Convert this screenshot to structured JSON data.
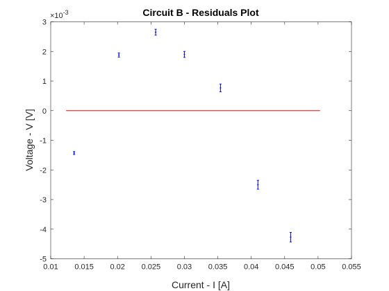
{
  "chart_data": {
    "type": "scatter",
    "title": "Circuit B - Residuals Plot",
    "xlabel": "Current - I [A]",
    "ylabel": "Voltage - V [V]",
    "exponent_label": "×10",
    "exponent_power": "-3",
    "xlim": [
      0.01,
      0.055
    ],
    "ylim": [
      -5,
      3
    ],
    "x_ticks": [
      0.01,
      0.015,
      0.02,
      0.025,
      0.03,
      0.035,
      0.04,
      0.045,
      0.05,
      0.055
    ],
    "x_tick_labels": [
      "0.01",
      "0.015",
      "0.02",
      "0.025",
      "0.03",
      "0.035",
      "0.04",
      "0.045",
      "0.05",
      "0.055"
    ],
    "y_ticks": [
      -5,
      -4,
      -3,
      -2,
      -1,
      0,
      1,
      2,
      3
    ],
    "y_tick_labels": [
      "-5",
      "-4",
      "-3",
      "-2",
      "-1",
      "0",
      "1",
      "2",
      "3"
    ],
    "grid": false,
    "series": [
      {
        "type": "errorbar",
        "color": "#0000ff",
        "points": [
          {
            "x": 0.0135,
            "y": -1.43,
            "err": 0.05
          },
          {
            "x": 0.0202,
            "y": 1.88,
            "err": 0.07
          },
          {
            "x": 0.0257,
            "y": 2.65,
            "err": 0.1
          },
          {
            "x": 0.03,
            "y": 1.9,
            "err": 0.1
          },
          {
            "x": 0.0354,
            "y": 0.77,
            "err": 0.13
          },
          {
            "x": 0.041,
            "y": -2.5,
            "err": 0.15
          },
          {
            "x": 0.0459,
            "y": -4.27,
            "err": 0.16
          }
        ]
      },
      {
        "type": "line",
        "color": "#ff0000",
        "x": [
          0.0123,
          0.0503
        ],
        "y": [
          0,
          0
        ]
      }
    ]
  }
}
